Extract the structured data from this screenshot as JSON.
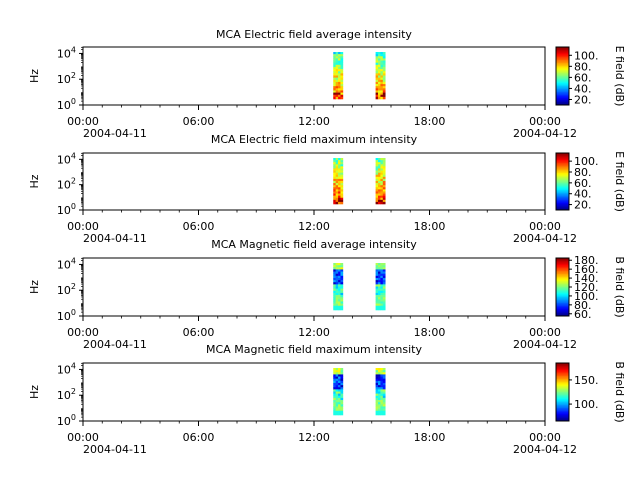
{
  "chart_data": [
    {
      "type": "heatmap",
      "title": "MCA  Electric field average intensity",
      "ylabel": "Hz",
      "y_scale": "log",
      "y_ticks": [
        {
          "base": "10",
          "exp": "0"
        },
        {
          "base": "10",
          "exp": "2"
        },
        {
          "base": "10",
          "exp": "4"
        }
      ],
      "x_ticks": [
        {
          "time": "00:00",
          "date": "2004-04-11"
        },
        {
          "time": "06:00",
          "date": ""
        },
        {
          "time": "12:00",
          "date": ""
        },
        {
          "time": "18:00",
          "date": ""
        },
        {
          "time": "00:00",
          "date": "2004-04-12"
        }
      ],
      "colorbar": {
        "label": "E field (dB)",
        "ticks": [
          "20.",
          "40.",
          "60.",
          "80.",
          "100."
        ],
        "min": 10,
        "max": 115
      },
      "bursts": [
        {
          "start_hour": 13.0,
          "end_hour": 13.5
        },
        {
          "start_hour": 15.2,
          "end_hour": 15.7
        }
      ],
      "profile": "electric"
    },
    {
      "type": "heatmap",
      "title": "MCA  Electric field maximum intensity",
      "ylabel": "Hz",
      "y_scale": "log",
      "y_ticks": [
        {
          "base": "10",
          "exp": "0"
        },
        {
          "base": "10",
          "exp": "2"
        },
        {
          "base": "10",
          "exp": "4"
        }
      ],
      "x_ticks": [
        {
          "time": "00:00",
          "date": "2004-04-11"
        },
        {
          "time": "06:00",
          "date": ""
        },
        {
          "time": "12:00",
          "date": ""
        },
        {
          "time": "18:00",
          "date": ""
        },
        {
          "time": "00:00",
          "date": "2004-04-12"
        }
      ],
      "colorbar": {
        "label": "E field (dB)",
        "ticks": [
          "20.",
          "40.",
          "60.",
          "80.",
          "100."
        ],
        "min": 10,
        "max": 115
      },
      "bursts": [
        {
          "start_hour": 13.0,
          "end_hour": 13.5
        },
        {
          "start_hour": 15.2,
          "end_hour": 15.7
        }
      ],
      "profile": "electric"
    },
    {
      "type": "heatmap",
      "title": "MCA  Magnetic field average intensity",
      "ylabel": "Hz",
      "y_scale": "log",
      "y_ticks": [
        {
          "base": "10",
          "exp": "0"
        },
        {
          "base": "10",
          "exp": "2"
        },
        {
          "base": "10",
          "exp": "4"
        }
      ],
      "x_ticks": [
        {
          "time": "00:00",
          "date": "2004-04-11"
        },
        {
          "time": "06:00",
          "date": ""
        },
        {
          "time": "12:00",
          "date": ""
        },
        {
          "time": "18:00",
          "date": ""
        },
        {
          "time": "00:00",
          "date": "2004-04-12"
        }
      ],
      "colorbar": {
        "label": "B field (dB)",
        "ticks": [
          "60.",
          "80.",
          "100.",
          "120.",
          "140.",
          "160.",
          "180."
        ],
        "min": 55,
        "max": 185
      },
      "bursts": [
        {
          "start_hour": 13.0,
          "end_hour": 13.5
        },
        {
          "start_hour": 15.2,
          "end_hour": 15.7
        }
      ],
      "profile": "magnetic"
    },
    {
      "type": "heatmap",
      "title": "MCA  Magnetic field maximum intensity",
      "ylabel": "Hz",
      "y_scale": "log",
      "y_ticks": [
        {
          "base": "10",
          "exp": "0"
        },
        {
          "base": "10",
          "exp": "2"
        },
        {
          "base": "10",
          "exp": "4"
        }
      ],
      "x_ticks": [
        {
          "time": "00:00",
          "date": "2004-04-11"
        },
        {
          "time": "06:00",
          "date": ""
        },
        {
          "time": "12:00",
          "date": ""
        },
        {
          "time": "18:00",
          "date": ""
        },
        {
          "time": "00:00",
          "date": "2004-04-12"
        }
      ],
      "colorbar": {
        "label": "B field (dB)",
        "ticks": [
          "100.",
          "150."
        ],
        "min": 65,
        "max": 185
      },
      "bursts": [
        {
          "start_hour": 13.0,
          "end_hour": 13.5
        },
        {
          "start_hour": 15.2,
          "end_hour": 15.7
        }
      ],
      "profile": "magnetic"
    }
  ]
}
